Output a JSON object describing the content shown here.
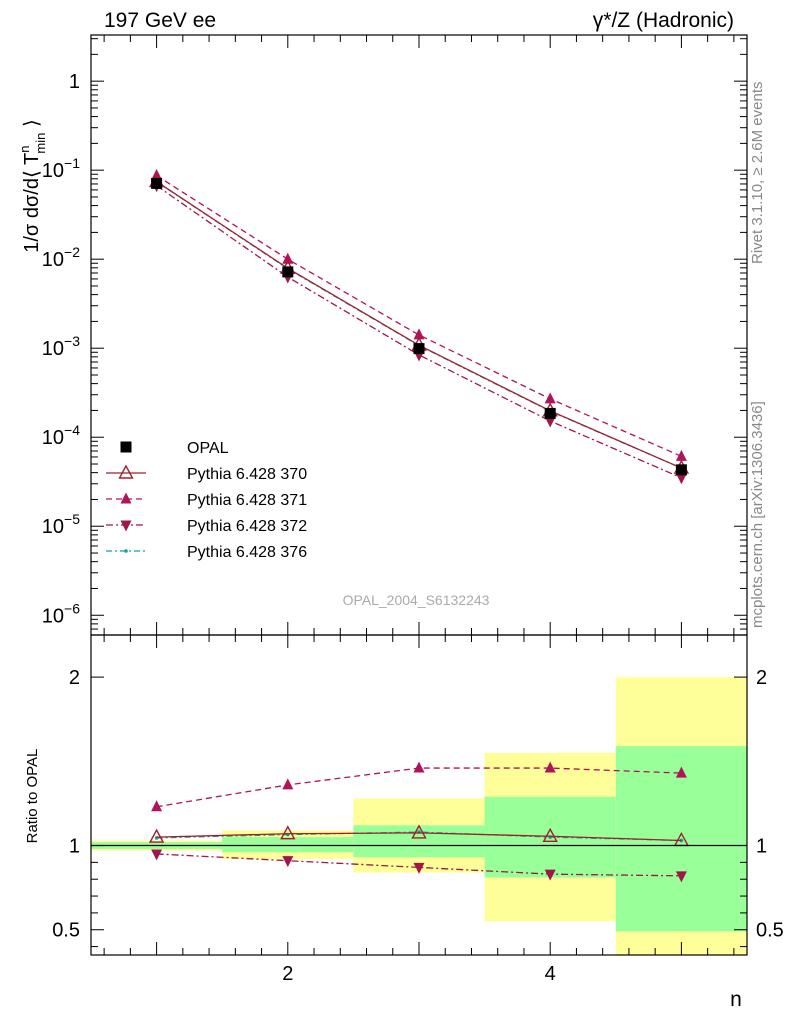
{
  "header": {
    "left_label": "197 GeV ee",
    "right_label": "γ*/Z (Hadronic)"
  },
  "side_labels": {
    "rivet": "Rivet 3.1.10, ≥ 2.6M events",
    "mcplots": "mcplots.cern.ch [arXiv:1306.3436]"
  },
  "watermark": "OPAL_2004_S6132243",
  "colors": {
    "data": "#000000",
    "p370": "#a01f2f",
    "p371": "#b0135a",
    "p372": "#a0154a",
    "p376": "#1a9c9c",
    "band_inner": "#99ff99",
    "band_outer": "#ffff99"
  },
  "chart_data": [
    {
      "type": "line",
      "panel": "main",
      "ylabel_parts": {
        "pre": "1/σ dσ/d⟨ T",
        "sup": "n",
        "sub": "min",
        "post": " ⟩"
      },
      "y_scale": "log",
      "ylim": [
        6e-07,
        3.3
      ],
      "xlim": [
        0.5,
        5.5
      ],
      "y_ticks": [
        {
          "base": "1",
          "exp": ""
        },
        {
          "base": "10",
          "exp": "−1"
        },
        {
          "base": "10",
          "exp": "−2"
        },
        {
          "base": "10",
          "exp": "−3"
        },
        {
          "base": "10",
          "exp": "−4"
        },
        {
          "base": "10",
          "exp": "−5"
        },
        {
          "base": "10",
          "exp": "−6"
        }
      ],
      "y_tick_values": [
        1,
        0.1,
        0.01,
        0.001,
        0.0001,
        1e-05,
        1e-06
      ],
      "legend_position": "bottom-left",
      "x": [
        1,
        2,
        3,
        4,
        5
      ],
      "series": [
        {
          "name": "OPAL",
          "values": [
            0.071,
            0.0072,
            0.00099,
            0.000185,
            4.3e-05
          ]
        },
        {
          "name": "Pythia 6.428 370",
          "values": [
            0.0745,
            0.0079,
            0.00108,
            0.000198,
            4.5e-05
          ]
        },
        {
          "name": "Pythia 6.428 371",
          "values": [
            0.087,
            0.01,
            0.00141,
            0.00027,
            6.1e-05
          ]
        },
        {
          "name": "Pythia 6.428 372",
          "values": [
            0.067,
            0.0063,
            0.00084,
            0.000152,
            3.5e-05
          ]
        },
        {
          "name": "Pythia 6.428 376",
          "values": [
            0.0742,
            0.0078,
            0.00107,
            0.000196,
            4.5e-05
          ]
        }
      ]
    },
    {
      "type": "line",
      "panel": "ratio",
      "ylabel": "Ratio to OPAL",
      "xlabel": "n",
      "ylim": [
        0.35,
        2.25
      ],
      "xlim": [
        0.5,
        5.5
      ],
      "y_ticks": [
        "2",
        "1",
        "0.5"
      ],
      "y_tick_values": [
        2,
        1,
        0.5
      ],
      "x_ticks": [
        "2",
        "4"
      ],
      "x_tick_values": [
        2,
        4
      ],
      "x": [
        1,
        2,
        3,
        4,
        5
      ],
      "bands": {
        "edges": [
          0.5,
          1.5,
          2.5,
          3.5,
          4.5,
          5.5
        ],
        "inner": [
          [
            0.98,
            1.02
          ],
          [
            0.96,
            1.05
          ],
          [
            0.93,
            1.12
          ],
          [
            0.81,
            1.29
          ],
          [
            0.49,
            1.59
          ]
        ],
        "outer": [
          [
            0.97,
            1.03
          ],
          [
            0.92,
            1.09
          ],
          [
            0.84,
            1.28
          ],
          [
            0.55,
            1.55
          ],
          [
            0.3,
            2.0
          ]
        ]
      },
      "series": [
        {
          "name": "Pythia 6.428 370",
          "values": [
            1.05,
            1.07,
            1.075,
            1.055,
            1.03
          ]
        },
        {
          "name": "Pythia 6.428 371",
          "values": [
            1.23,
            1.36,
            1.46,
            1.46,
            1.43
          ]
        },
        {
          "name": "Pythia 6.428 372",
          "values": [
            0.95,
            0.91,
            0.87,
            0.83,
            0.82
          ]
        },
        {
          "name": "Pythia 6.428 376",
          "values": [
            1.045,
            1.065,
            1.08,
            1.05,
            1.03
          ]
        }
      ]
    }
  ]
}
